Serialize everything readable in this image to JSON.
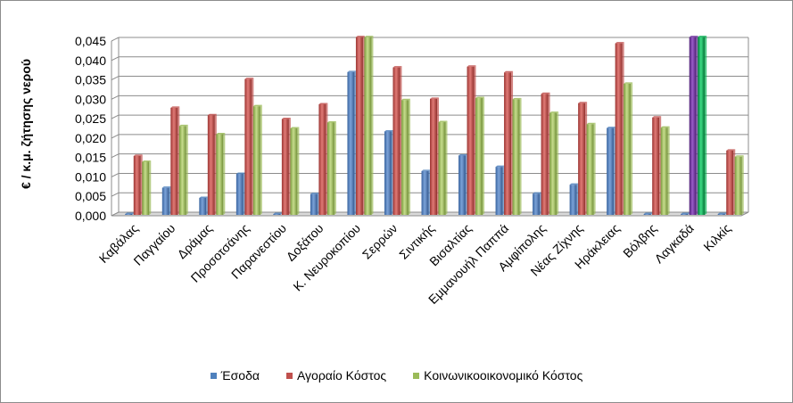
{
  "chart_data": {
    "type": "bar",
    "title": "",
    "xlabel": "",
    "ylabel": "€ / κ.μ. ζήτησης νερού",
    "ylim": [
      0,
      0.045
    ],
    "yticks": [
      "0,000",
      "0,005",
      "0,010",
      "0,015",
      "0,020",
      "0,025",
      "0,030",
      "0,035",
      "0,040",
      "0,045"
    ],
    "grid": true,
    "legend_position": "bottom",
    "categories": [
      "Καβάλας",
      "Παγγαίου",
      "Δράμας",
      "Προσοτσάνης",
      "Παρανεστίου",
      "Δοξάτου",
      "Κ. Νευροκοπίου",
      "Σερρών",
      "Σιντικής",
      "Βισαλτίας",
      "Εμμανουήλ Παππά",
      "Αμφίπολης",
      "Νέας Ζίχνης",
      "Ηράκλειας",
      "Βόλβης",
      "Λαγκαδά",
      "Κιλκίς"
    ],
    "series": [
      {
        "name": "Έσοδα",
        "color": "#4f81bd",
        "values": [
          0.0,
          0.0072,
          0.0046,
          0.0108,
          0.0,
          0.0056,
          0.037,
          0.0217,
          0.0115,
          0.0155,
          0.0126,
          0.0057,
          0.008,
          0.0226,
          0.0,
          0.0,
          0.0
        ]
      },
      {
        "name": "Αγοραίο Κόστος",
        "color": "#c0504d",
        "values": [
          0.0154,
          0.0278,
          0.0259,
          0.0352,
          0.0249,
          0.0287,
          0.046,
          0.0382,
          0.0301,
          0.0384,
          0.0369,
          0.0314,
          0.029,
          0.0444,
          0.0253,
          0.046,
          0.0168
        ]
      },
      {
        "name": "Κοινωνικοοικονομικό Κόστος",
        "color": "#9bbb59",
        "values": [
          0.0139,
          0.0231,
          0.021,
          0.0282,
          0.0225,
          0.024,
          0.046,
          0.0298,
          0.0241,
          0.0303,
          0.03,
          0.0265,
          0.0236,
          0.034,
          0.0227,
          0.046,
          0.0152
        ]
      }
    ],
    "highlight": {
      "category_index": 15,
      "colors": [
        "#7030a0",
        "#00b050"
      ]
    }
  }
}
